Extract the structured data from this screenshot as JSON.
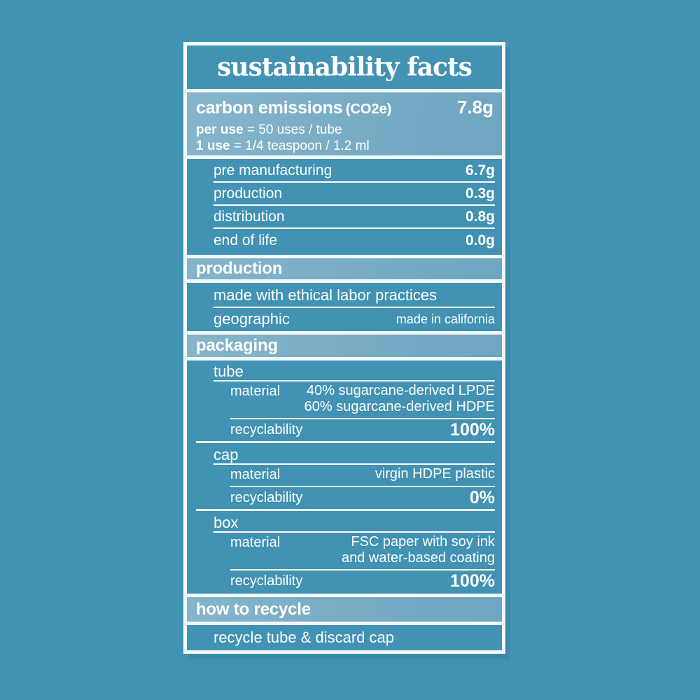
{
  "colors": {
    "background": "#4192b3",
    "panel_frame": "#f2f9fb",
    "header_band_light": "#77abc4",
    "text": "#ffffff"
  },
  "title": "sustainability facts",
  "carbon": {
    "heading": "carbon emissions",
    "heading_suffix": "(CO2e)",
    "total": "7.8g",
    "note1_bold": "per use",
    "note1_rest": "= 50 uses / tube",
    "note2_bold": "1 use",
    "note2_rest": "= 1/4 teaspoon / 1.2 ml",
    "rows": [
      {
        "label": "pre manufacturing",
        "value": "6.7g"
      },
      {
        "label": "production",
        "value": "0.3g"
      },
      {
        "label": "distribution",
        "value": "0.8g"
      },
      {
        "label": "end of life",
        "value": "0.0g"
      }
    ]
  },
  "production": {
    "heading": "production",
    "row1": "made with ethical labor practices",
    "row2_label": "geographic",
    "row2_value": "made in california"
  },
  "packaging": {
    "heading": "packaging",
    "material_label": "material",
    "recyclability_label": "recyclability",
    "items": [
      {
        "name": "tube",
        "material_lines": [
          "40% sugarcane-derived LPDE",
          "60% sugarcane-derived HDPE"
        ],
        "recyclability_value": "100%"
      },
      {
        "name": "cap",
        "material_lines": [
          "virgin HDPE plastic"
        ],
        "recyclability_value": "0%"
      },
      {
        "name": "box",
        "material_lines": [
          "FSC paper with soy ink",
          "and water-based coating"
        ],
        "recyclability_value": "100%"
      }
    ]
  },
  "recycle": {
    "heading": "how to recycle",
    "instruction": "recycle tube & discard cap"
  }
}
